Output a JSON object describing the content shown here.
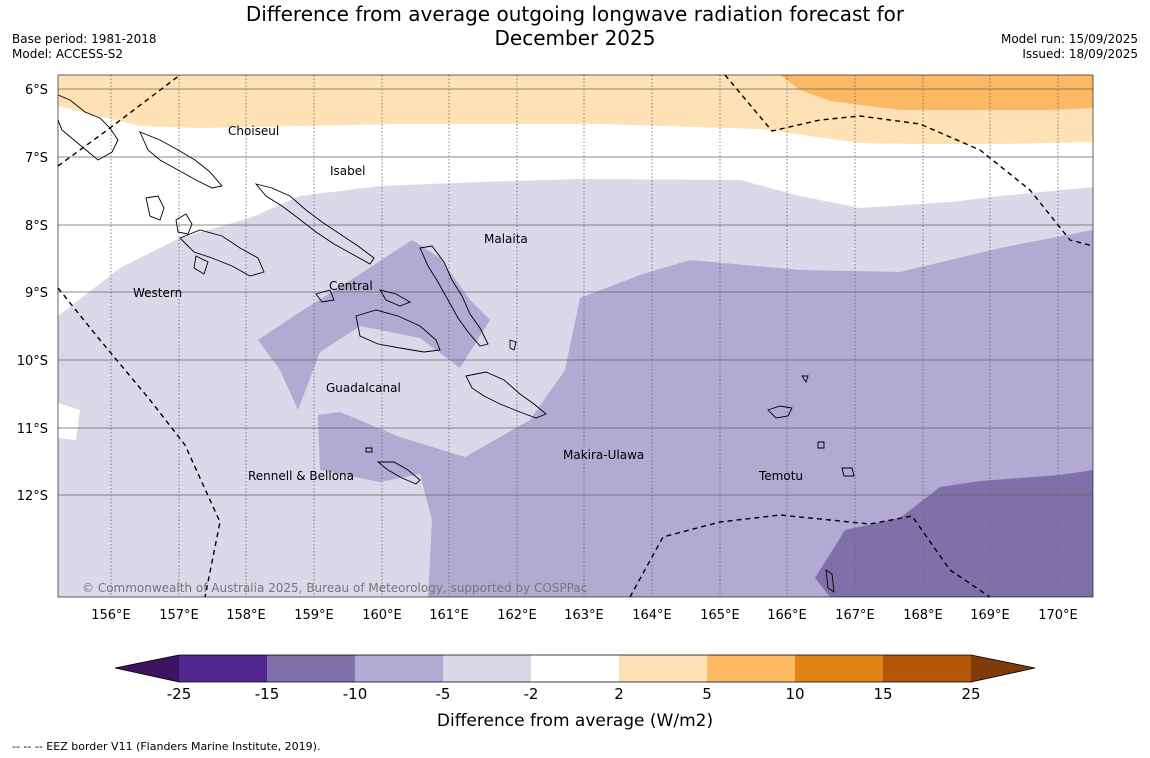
{
  "title_line1": "Difference from average outgoing longwave radiation forecast for",
  "title_line2": "December 2025",
  "base_period": "Base period: 1981-2018",
  "model": "Model: ACCESS-S2",
  "model_run": "Model run: 15/09/2025",
  "issued": "Issued: 18/09/2025",
  "copyright": "© Commonwealth of Australia 2025, Bureau of Meteorology, supported by COSPPac",
  "footnote": "--  --  -- EEZ border V11 (Flanders Marine Institute, 2019).",
  "lat_labels": [
    "6°S",
    "7°S",
    "8°S",
    "9°S",
    "10°S",
    "11°S",
    "12°S"
  ],
  "lon_labels": [
    "156°E",
    "157°E",
    "158°E",
    "159°E",
    "160°E",
    "161°E",
    "162°E",
    "163°E",
    "164°E",
    "165°E",
    "166°E",
    "167°E",
    "168°E",
    "169°E",
    "170°E"
  ],
  "province_labels": [
    "Choiseul",
    "Isabel",
    "Malaita",
    "Western",
    "Central",
    "Guadalcanal",
    "Makira-Ulawa",
    "Rennell & Bellona",
    "Temotu"
  ],
  "colorbar": {
    "label": "Difference from average (W/m2)",
    "ticks": [
      "-25",
      "-15",
      "-10",
      "-5",
      "-2",
      "2",
      "5",
      "10",
      "15",
      "25"
    ],
    "colors": [
      "#3f1360",
      "#54278f",
      "#8070aa",
      "#b1aad3",
      "#d9d9ea",
      "#ffffff",
      "#fee1b5",
      "#fdb863",
      "#e08214",
      "#b35806",
      "#7f3b08"
    ]
  }
}
